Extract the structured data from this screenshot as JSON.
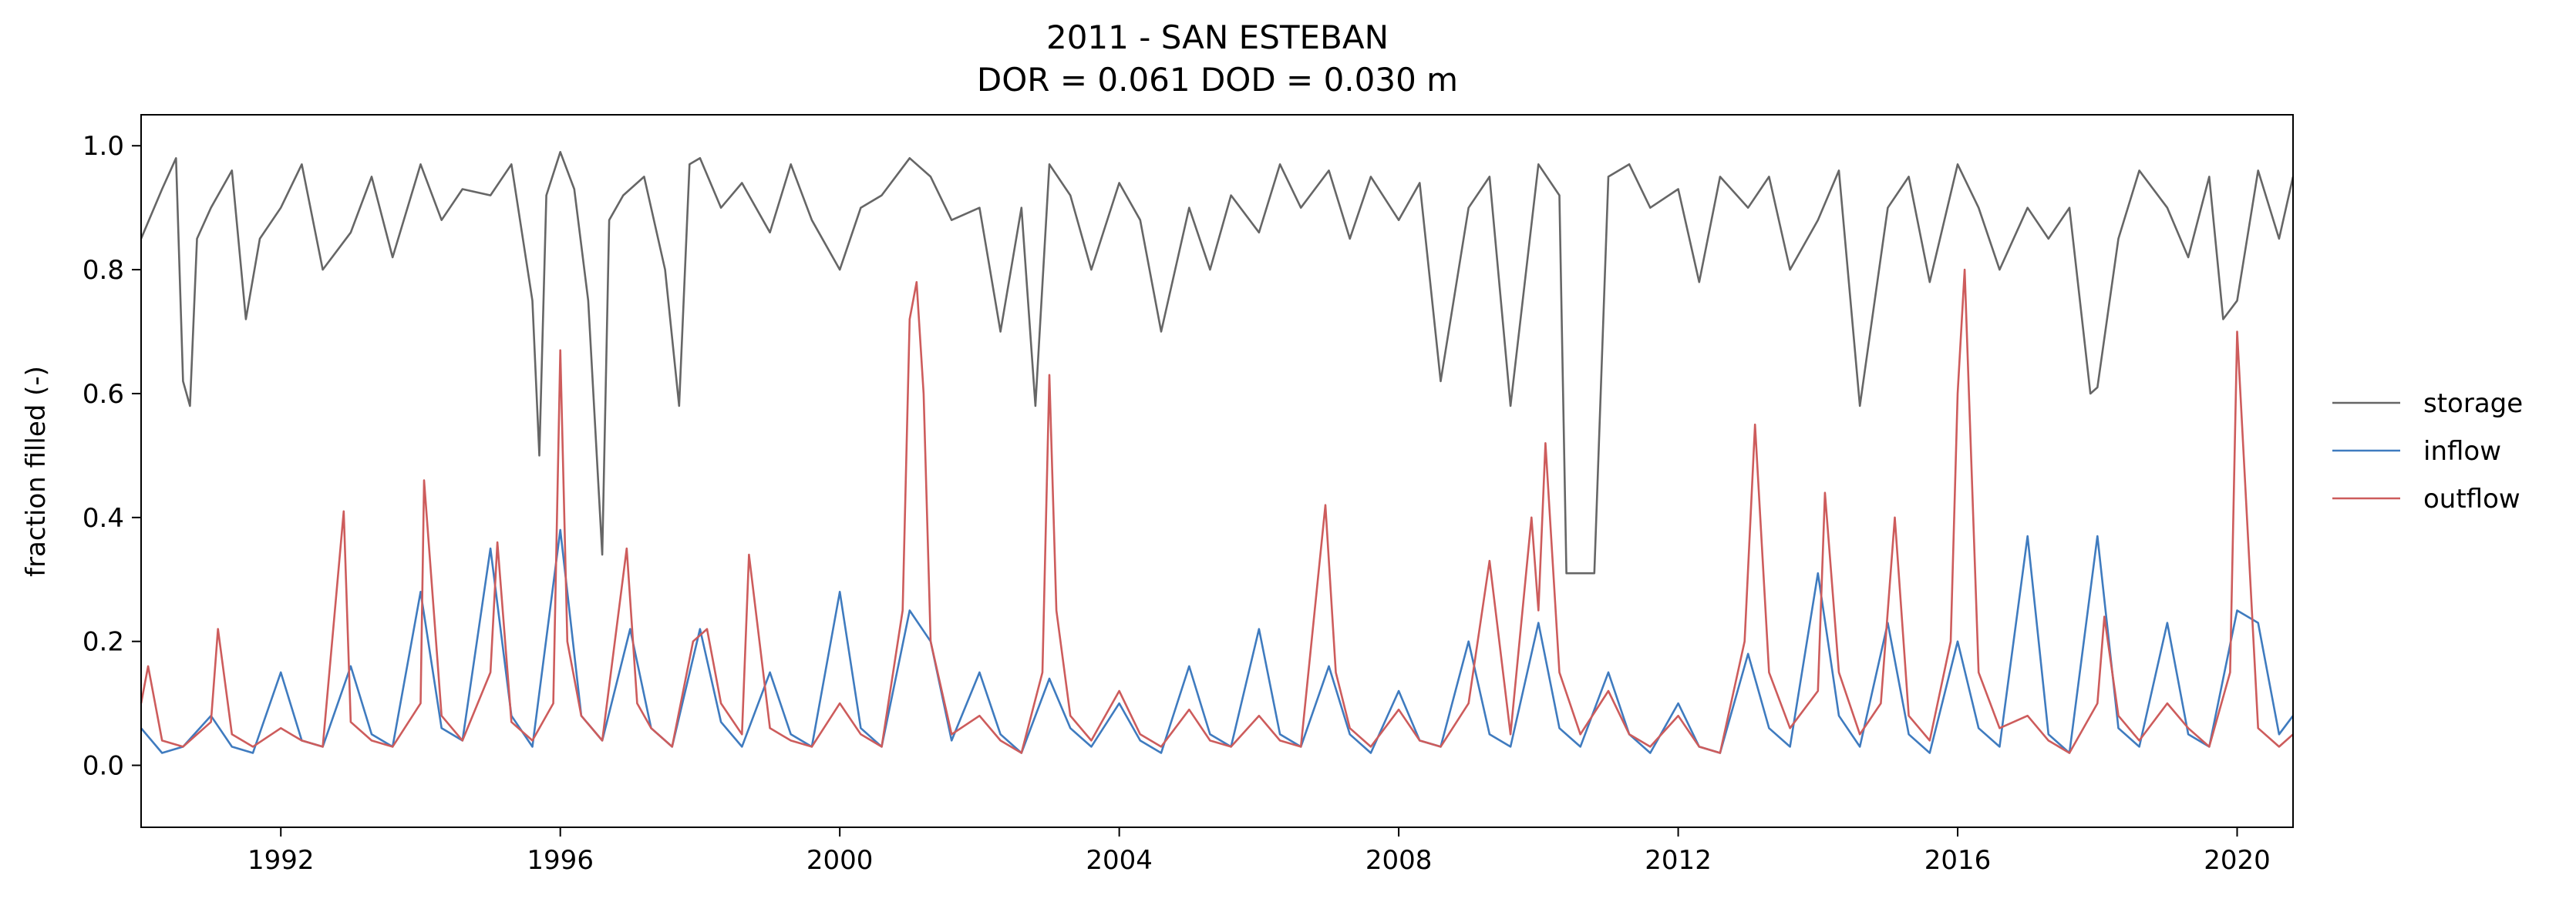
{
  "chart_data": {
    "type": "line",
    "title": "2011 - SAN ESTEBAN",
    "subtitle": "DOR = 0.061  DOD = 0.030 m",
    "xlabel": "",
    "ylabel": "fraction filled (-)",
    "xlim": [
      1990.0,
      2020.8
    ],
    "ylim": [
      -0.1,
      1.05
    ],
    "x_ticks": [
      "1992",
      "1996",
      "2000",
      "2004",
      "2008",
      "2012",
      "2016",
      "2020"
    ],
    "y_ticks": [
      "0.0",
      "0.2",
      "0.4",
      "0.6",
      "0.8",
      "1.0"
    ],
    "grid": false,
    "legend_position": "right",
    "series": [
      {
        "name": "storage",
        "color": "#666666",
        "x": [
          1990.0,
          1990.3,
          1990.5,
          1990.6,
          1990.7,
          1990.8,
          1991.0,
          1991.3,
          1991.5,
          1991.7,
          1992.0,
          1992.3,
          1992.6,
          1993.0,
          1993.3,
          1993.6,
          1994.0,
          1994.3,
          1994.6,
          1995.0,
          1995.3,
          1995.6,
          1995.7,
          1995.8,
          1996.0,
          1996.2,
          1996.4,
          1996.6,
          1996.7,
          1996.9,
          1997.2,
          1997.5,
          1997.7,
          1997.85,
          1998.0,
          1998.3,
          1998.6,
          1999.0,
          1999.3,
          1999.6,
          2000.0,
          2000.3,
          2000.6,
          2001.0,
          2001.3,
          2001.6,
          2002.0,
          2002.3,
          2002.6,
          2002.8,
          2003.0,
          2003.3,
          2003.6,
          2004.0,
          2004.3,
          2004.6,
          2005.0,
          2005.3,
          2005.6,
          2006.0,
          2006.3,
          2006.6,
          2007.0,
          2007.3,
          2007.6,
          2008.0,
          2008.3,
          2008.6,
          2009.0,
          2009.3,
          2009.6,
          2010.0,
          2010.3,
          2010.4,
          2010.6,
          2010.8,
          2011.0,
          2011.3,
          2011.6,
          2012.0,
          2012.3,
          2012.6,
          2013.0,
          2013.3,
          2013.6,
          2014.0,
          2014.3,
          2014.6,
          2015.0,
          2015.3,
          2015.6,
          2016.0,
          2016.3,
          2016.6,
          2017.0,
          2017.3,
          2017.6,
          2017.9,
          2018.0,
          2018.3,
          2018.6,
          2019.0,
          2019.3,
          2019.6,
          2019.8,
          2020.0,
          2020.3,
          2020.6,
          2020.8
        ],
        "y": [
          0.85,
          0.93,
          0.98,
          0.62,
          0.58,
          0.85,
          0.9,
          0.96,
          0.72,
          0.85,
          0.9,
          0.97,
          0.8,
          0.86,
          0.95,
          0.82,
          0.97,
          0.88,
          0.93,
          0.92,
          0.97,
          0.75,
          0.5,
          0.92,
          0.99,
          0.93,
          0.75,
          0.34,
          0.88,
          0.92,
          0.95,
          0.8,
          0.58,
          0.97,
          0.98,
          0.9,
          0.94,
          0.86,
          0.97,
          0.88,
          0.8,
          0.9,
          0.92,
          0.98,
          0.95,
          0.88,
          0.9,
          0.7,
          0.9,
          0.58,
          0.97,
          0.92,
          0.8,
          0.94,
          0.88,
          0.7,
          0.9,
          0.8,
          0.92,
          0.86,
          0.97,
          0.9,
          0.96,
          0.85,
          0.95,
          0.88,
          0.94,
          0.62,
          0.9,
          0.95,
          0.58,
          0.97,
          0.92,
          0.31,
          0.31,
          0.31,
          0.95,
          0.97,
          0.9,
          0.93,
          0.78,
          0.95,
          0.9,
          0.95,
          0.8,
          0.88,
          0.96,
          0.58,
          0.9,
          0.95,
          0.78,
          0.97,
          0.9,
          0.8,
          0.9,
          0.85,
          0.9,
          0.6,
          0.61,
          0.85,
          0.96,
          0.9,
          0.82,
          0.95,
          0.72,
          0.75,
          0.96,
          0.85,
          0.95
        ]
      },
      {
        "name": "inflow",
        "color": "#3f7bbf",
        "x": [
          1990.0,
          1990.3,
          1990.6,
          1991.0,
          1991.3,
          1991.6,
          1992.0,
          1992.3,
          1992.6,
          1993.0,
          1993.3,
          1993.6,
          1994.0,
          1994.3,
          1994.6,
          1995.0,
          1995.3,
          1995.6,
          1996.0,
          1996.3,
          1996.6,
          1997.0,
          1997.3,
          1997.6,
          1998.0,
          1998.3,
          1998.6,
          1999.0,
          1999.3,
          1999.6,
          2000.0,
          2000.3,
          2000.6,
          2001.0,
          2001.3,
          2001.6,
          2002.0,
          2002.3,
          2002.6,
          2003.0,
          2003.3,
          2003.6,
          2004.0,
          2004.3,
          2004.6,
          2005.0,
          2005.3,
          2005.6,
          2006.0,
          2006.3,
          2006.6,
          2007.0,
          2007.3,
          2007.6,
          2008.0,
          2008.3,
          2008.6,
          2009.0,
          2009.3,
          2009.6,
          2010.0,
          2010.3,
          2010.6,
          2011.0,
          2011.3,
          2011.6,
          2012.0,
          2012.3,
          2012.6,
          2013.0,
          2013.3,
          2013.6,
          2014.0,
          2014.3,
          2014.6,
          2015.0,
          2015.3,
          2015.6,
          2016.0,
          2016.3,
          2016.6,
          2017.0,
          2017.3,
          2017.6,
          2018.0,
          2018.3,
          2018.6,
          2019.0,
          2019.3,
          2019.6,
          2020.0,
          2020.3,
          2020.6,
          2020.8
        ],
        "y": [
          0.06,
          0.02,
          0.03,
          0.08,
          0.03,
          0.02,
          0.15,
          0.04,
          0.03,
          0.16,
          0.05,
          0.03,
          0.28,
          0.06,
          0.04,
          0.35,
          0.08,
          0.03,
          0.38,
          0.08,
          0.04,
          0.22,
          0.06,
          0.03,
          0.22,
          0.07,
          0.03,
          0.15,
          0.05,
          0.03,
          0.28,
          0.06,
          0.03,
          0.25,
          0.2,
          0.04,
          0.15,
          0.05,
          0.02,
          0.14,
          0.06,
          0.03,
          0.1,
          0.04,
          0.02,
          0.16,
          0.05,
          0.03,
          0.22,
          0.05,
          0.03,
          0.16,
          0.05,
          0.02,
          0.12,
          0.04,
          0.03,
          0.2,
          0.05,
          0.03,
          0.23,
          0.06,
          0.03,
          0.15,
          0.05,
          0.02,
          0.1,
          0.03,
          0.02,
          0.18,
          0.06,
          0.03,
          0.31,
          0.08,
          0.03,
          0.23,
          0.05,
          0.02,
          0.2,
          0.06,
          0.03,
          0.37,
          0.05,
          0.02,
          0.37,
          0.06,
          0.03,
          0.23,
          0.05,
          0.03,
          0.25,
          0.23,
          0.05,
          0.08
        ]
      },
      {
        "name": "outflow",
        "color": "#cd5c5c",
        "x": [
          1990.0,
          1990.1,
          1990.3,
          1990.6,
          1991.0,
          1991.1,
          1991.3,
          1991.6,
          1992.0,
          1992.3,
          1992.6,
          1992.9,
          1993.0,
          1993.3,
          1993.6,
          1994.0,
          1994.05,
          1994.3,
          1994.6,
          1995.0,
          1995.1,
          1995.3,
          1995.6,
          1995.9,
          1996.0,
          1996.1,
          1996.3,
          1996.6,
          1996.95,
          1997.1,
          1997.3,
          1997.6,
          1997.9,
          1998.1,
          1998.3,
          1998.6,
          1998.7,
          1999.0,
          1999.3,
          1999.6,
          2000.0,
          2000.3,
          2000.6,
          2000.9,
          2001.0,
          2001.1,
          2001.2,
          2001.3,
          2001.6,
          2002.0,
          2002.3,
          2002.6,
          2002.9,
          2003.0,
          2003.1,
          2003.3,
          2003.6,
          2004.0,
          2004.3,
          2004.6,
          2005.0,
          2005.3,
          2005.6,
          2006.0,
          2006.3,
          2006.6,
          2006.95,
          2007.1,
          2007.3,
          2007.6,
          2008.0,
          2008.3,
          2008.6,
          2009.0,
          2009.3,
          2009.6,
          2009.9,
          2010.0,
          2010.1,
          2010.3,
          2010.6,
          2011.0,
          2011.3,
          2011.6,
          2012.0,
          2012.3,
          2012.6,
          2012.95,
          2013.1,
          2013.3,
          2013.6,
          2014.0,
          2014.1,
          2014.3,
          2014.6,
          2014.9,
          2015.1,
          2015.3,
          2015.6,
          2015.9,
          2016.0,
          2016.1,
          2016.3,
          2016.6,
          2017.0,
          2017.3,
          2017.6,
          2018.0,
          2018.1,
          2018.3,
          2018.6,
          2019.0,
          2019.3,
          2019.6,
          2019.9,
          2020.0,
          2020.3,
          2020.6,
          2020.8
        ],
        "y": [
          0.1,
          0.16,
          0.04,
          0.03,
          0.07,
          0.22,
          0.05,
          0.03,
          0.06,
          0.04,
          0.03,
          0.41,
          0.07,
          0.04,
          0.03,
          0.1,
          0.46,
          0.08,
          0.04,
          0.15,
          0.36,
          0.07,
          0.04,
          0.1,
          0.67,
          0.2,
          0.08,
          0.04,
          0.35,
          0.1,
          0.06,
          0.03,
          0.2,
          0.22,
          0.1,
          0.05,
          0.34,
          0.06,
          0.04,
          0.03,
          0.1,
          0.05,
          0.03,
          0.25,
          0.72,
          0.78,
          0.6,
          0.2,
          0.05,
          0.08,
          0.04,
          0.02,
          0.15,
          0.63,
          0.25,
          0.08,
          0.04,
          0.12,
          0.05,
          0.03,
          0.09,
          0.04,
          0.03,
          0.08,
          0.04,
          0.03,
          0.42,
          0.15,
          0.06,
          0.03,
          0.09,
          0.04,
          0.03,
          0.1,
          0.33,
          0.05,
          0.4,
          0.25,
          0.52,
          0.15,
          0.05,
          0.12,
          0.05,
          0.03,
          0.08,
          0.03,
          0.02,
          0.2,
          0.55,
          0.15,
          0.06,
          0.12,
          0.44,
          0.15,
          0.05,
          0.1,
          0.4,
          0.08,
          0.04,
          0.2,
          0.6,
          0.8,
          0.15,
          0.06,
          0.08,
          0.04,
          0.02,
          0.1,
          0.24,
          0.08,
          0.04,
          0.1,
          0.06,
          0.03,
          0.15,
          0.7,
          0.06,
          0.03,
          0.05
        ]
      }
    ]
  }
}
